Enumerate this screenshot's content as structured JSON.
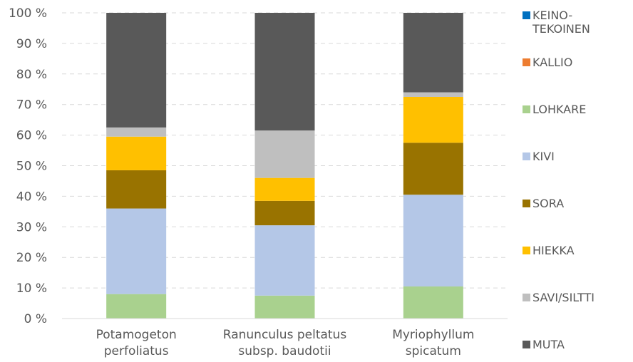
{
  "chart_data": {
    "type": "bar",
    "stacked": "percent",
    "categories": [
      "Potamogeton\nperfoliatus",
      "Ranunculus peltatus\nsubsp. baudotii",
      "Myriophyllum\nspicatum"
    ],
    "series": [
      {
        "name": "KEINO-\nTEKOINEN",
        "color": "#0070C0",
        "values": [
          0,
          0,
          0
        ]
      },
      {
        "name": "KALLIO",
        "color": "#ED7D31",
        "values": [
          0,
          0,
          0
        ]
      },
      {
        "name": "LOHKARE",
        "color": "#A9D18E",
        "values": [
          8,
          7.5,
          10.5
        ]
      },
      {
        "name": "KIVI",
        "color": "#B4C7E7",
        "values": [
          28,
          23,
          30
        ]
      },
      {
        "name": "SORA",
        "color": "#997300",
        "values": [
          12.5,
          8,
          17
        ]
      },
      {
        "name": "HIEKKA",
        "color": "#FFC000",
        "values": [
          11,
          7.5,
          15
        ]
      },
      {
        "name": "SAVI/SILTTI",
        "color": "#BFBFBF",
        "values": [
          3,
          15.5,
          1.5
        ]
      },
      {
        "name": "MUTA",
        "color": "#595959",
        "values": [
          37.5,
          38.5,
          26
        ]
      }
    ],
    "ylim": [
      0,
      100
    ],
    "yticks": [
      "0 %",
      "10 %",
      "20 %",
      "30 %",
      "40 %",
      "50 %",
      "60 %",
      "70 %",
      "80 %",
      "90 %",
      "100 %"
    ],
    "grid": true,
    "legend_position": "right"
  }
}
